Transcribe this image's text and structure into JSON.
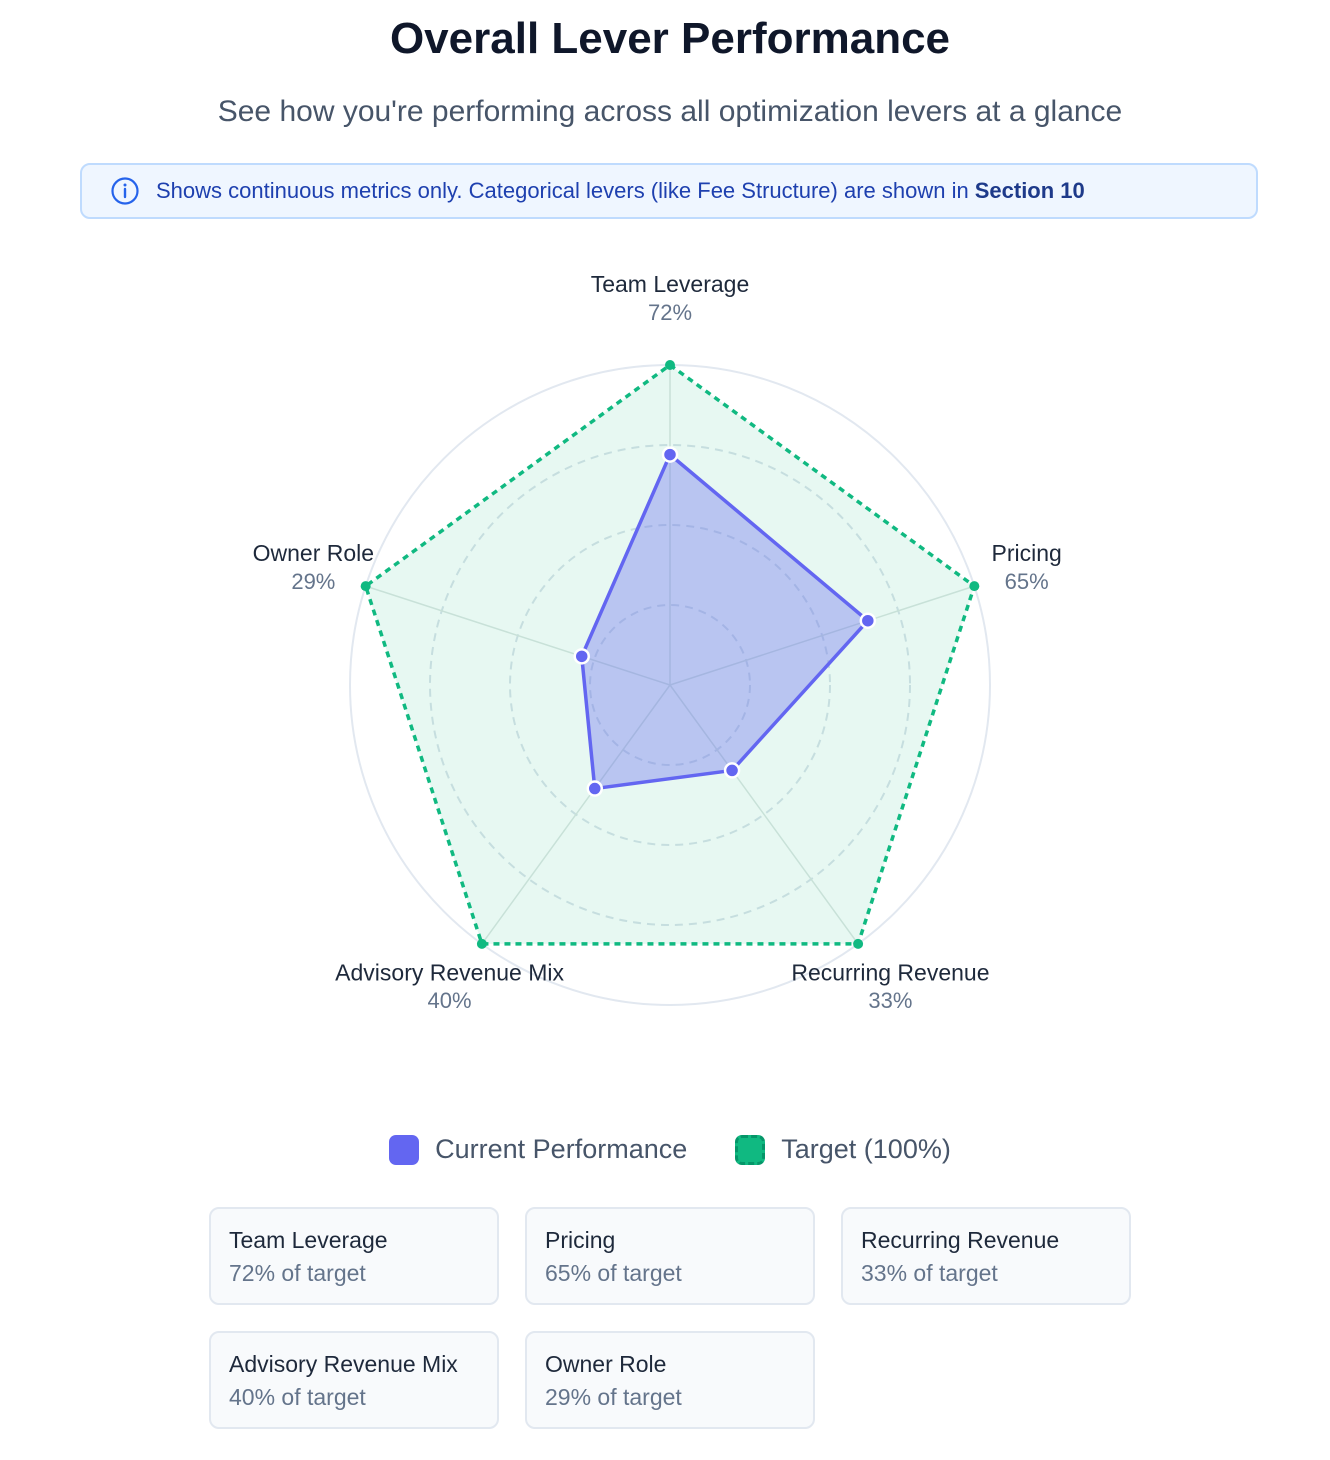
{
  "header": {
    "title": "Overall Lever Performance",
    "subtitle": "See how you're performing across all optimization levers at a glance"
  },
  "notice": {
    "text": "Shows continuous metrics only. Categorical levers (like Fee Structure) are shown in",
    "link": "Section 10"
  },
  "chart_data": {
    "type": "radar",
    "categories": [
      "Team Leverage",
      "Pricing",
      "Recurring Revenue",
      "Advisory Revenue Mix",
      "Owner Role"
    ],
    "series": [
      {
        "name": "Current Performance",
        "color": "#6366f1",
        "values": [
          72,
          65,
          33,
          40,
          29
        ],
        "value_labels": [
          "72%",
          "65%",
          "33%",
          "40%",
          "29%"
        ]
      },
      {
        "name": "Target (100%)",
        "color": "#10b981",
        "values": [
          100,
          100,
          100,
          100,
          100
        ]
      }
    ],
    "rlim": [
      0,
      100
    ],
    "rticks": [
      25,
      50,
      75,
      100
    ],
    "grid": true,
    "legend": "bottom"
  },
  "cards": [
    {
      "title": "Team Leverage",
      "detail": "72% of target"
    },
    {
      "title": "Pricing",
      "detail": "65% of target"
    },
    {
      "title": "Recurring Revenue",
      "detail": "33% of target"
    },
    {
      "title": "Advisory Revenue Mix",
      "detail": "40% of target"
    },
    {
      "title": "Owner Role",
      "detail": "29% of target"
    }
  ]
}
